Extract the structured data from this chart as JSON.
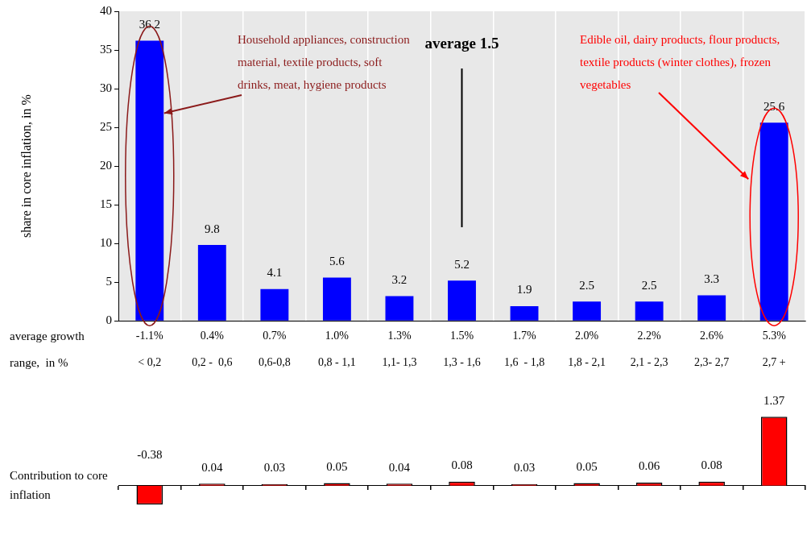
{
  "chart_data": [
    {
      "type": "bar",
      "ylabel": "share in core inflation, in %",
      "xlabel": "average growth\nrange,  in %",
      "categories": [
        "-1.1%\n< 0,2",
        "0.4%\n0,2 -  0,6",
        "0.7%\n0,6-0,8",
        "1.0%\n0,8 - 1,1",
        "1.3%\n1,1- 1,3",
        "1.5%\n1,3 - 1,6",
        "1.7%\n1,6  - 1,8",
        "2.0%\n1,8 - 2,1",
        "2.2%\n2,1 - 2,3",
        "2.6%\n2,3- 2,7",
        "5.3%\n2,7 +"
      ],
      "values": [
        36.2,
        9.8,
        4.1,
        5.6,
        3.2,
        5.2,
        1.9,
        2.5,
        2.5,
        3.3,
        25.6
      ],
      "color": "#0000ff",
      "ylim": [
        0,
        40
      ],
      "yticks": [
        0,
        5,
        10,
        15,
        20,
        25,
        30,
        35,
        40
      ],
      "grid": "x",
      "data_labels": true,
      "annotations": [
        "Household appliances, construction material, textile products, soft drinks, meat, hygiene products",
        "average 1.5",
        "Edible oil, dairy products, flour products,  textile products (winter clothes), frozen vegetables"
      ]
    },
    {
      "type": "bar",
      "ylabel": "Contribution to core inflation",
      "categories": [
        null,
        null,
        null,
        null,
        null,
        null,
        null,
        null,
        null,
        null,
        null
      ],
      "values": [
        -0.38,
        0.04,
        0.03,
        0.05,
        0.04,
        0.08,
        0.03,
        0.05,
        0.06,
        0.08,
        1.37
      ],
      "color": "#ff0000",
      "data_labels": true
    }
  ]
}
